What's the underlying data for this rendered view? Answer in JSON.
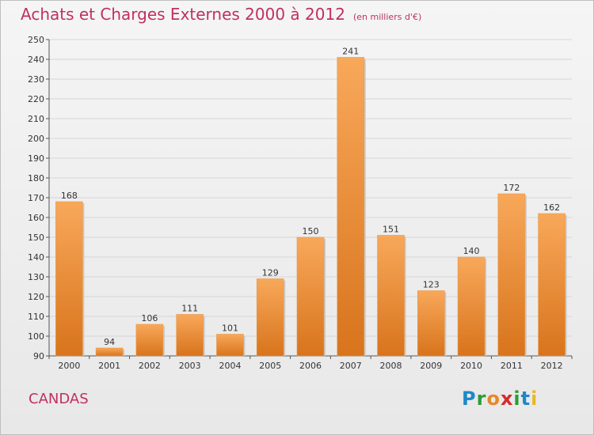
{
  "header": {
    "title": "Achats et Charges Externes 2000 à 2012",
    "subtitle": "(en milliers d'€)"
  },
  "commune": "CANDAS",
  "logo": {
    "text": "Proxiti"
  },
  "colors": {
    "title": "#c03060",
    "bar_top": "#f8a85a",
    "bar_bottom": "#d8741c"
  },
  "chart_data": {
    "type": "bar",
    "title": "Achats et Charges Externes 2000 à 2012",
    "subtitle": "(en milliers d'€)",
    "categories": [
      "2000",
      "2001",
      "2002",
      "2003",
      "2004",
      "2005",
      "2006",
      "2007",
      "2008",
      "2009",
      "2010",
      "2011",
      "2012"
    ],
    "values": [
      168,
      94,
      106,
      111,
      101,
      129,
      150,
      241,
      151,
      123,
      140,
      172,
      162
    ],
    "ylim": [
      90,
      250
    ],
    "yticks": [
      90,
      100,
      110,
      120,
      130,
      140,
      150,
      160,
      170,
      180,
      190,
      200,
      210,
      220,
      230,
      240,
      250
    ],
    "grid": true
  }
}
